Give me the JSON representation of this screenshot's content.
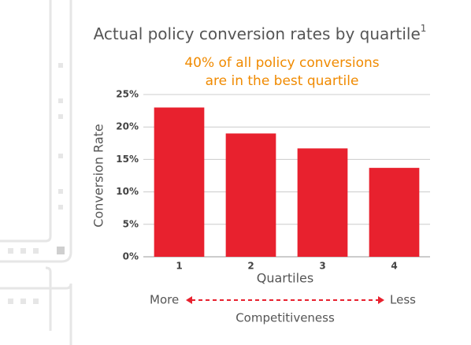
{
  "chart_data": {
    "type": "bar",
    "title": "Actual policy conversion rates by quartile",
    "title_footnote": "1",
    "subtitle": [
      "40% of all policy conversions",
      "are in the best quartile"
    ],
    "y_label": "Conversion Rate",
    "x_label": "Quartiles",
    "categories": [
      "1",
      "2",
      "3",
      "4"
    ],
    "values": [
      23,
      19,
      16.7,
      13.7
    ],
    "color": "#e8212e",
    "ylim": [
      0,
      25
    ],
    "yticks": [
      {
        "value": 0,
        "label": "0%"
      },
      {
        "value": 5,
        "label": "5%"
      },
      {
        "value": 10,
        "label": "10%"
      },
      {
        "value": 15,
        "label": "15%"
      },
      {
        "value": 20,
        "label": "20%"
      },
      {
        "value": 25,
        "label": "25%"
      }
    ],
    "grid": true,
    "scale_left": "More",
    "scale_right": "Less",
    "scale_label": "Competitiveness"
  }
}
